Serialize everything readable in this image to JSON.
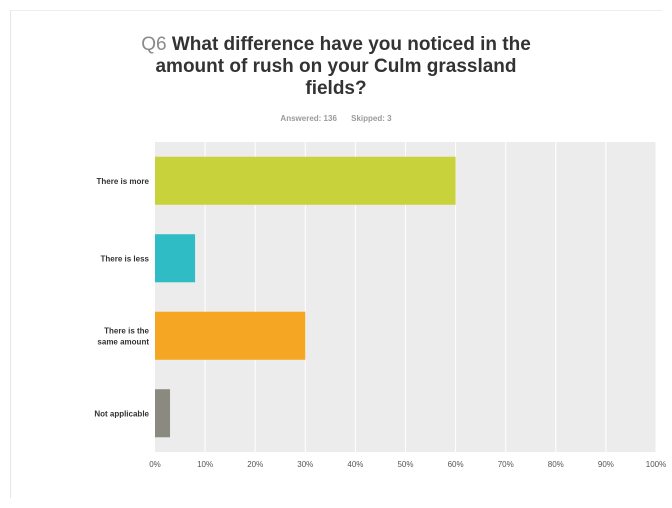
{
  "question": {
    "number": "Q6",
    "title_lines": [
      "What difference have you noticed in the",
      "amount of rush on your Culm grassland",
      "fields?"
    ],
    "answered": "Answered: 136",
    "skipped": "Skipped: 3"
  },
  "chart_data": {
    "type": "bar",
    "orientation": "horizontal",
    "categories": [
      [
        "There is more"
      ],
      [
        "There is less"
      ],
      [
        "There is the",
        "same amount"
      ],
      [
        "Not applicable"
      ]
    ],
    "values": [
      60,
      8,
      30,
      3
    ],
    "colors": [
      "#c8d23a",
      "#2fbcc4",
      "#f5a623",
      "#8a8a80"
    ],
    "xlim": [
      0,
      100
    ],
    "ticks": [
      "0%",
      "10%",
      "20%",
      "30%",
      "40%",
      "50%",
      "60%",
      "70%",
      "80%",
      "90%",
      "100%"
    ],
    "grid": true,
    "plot_background": "#ececec"
  }
}
